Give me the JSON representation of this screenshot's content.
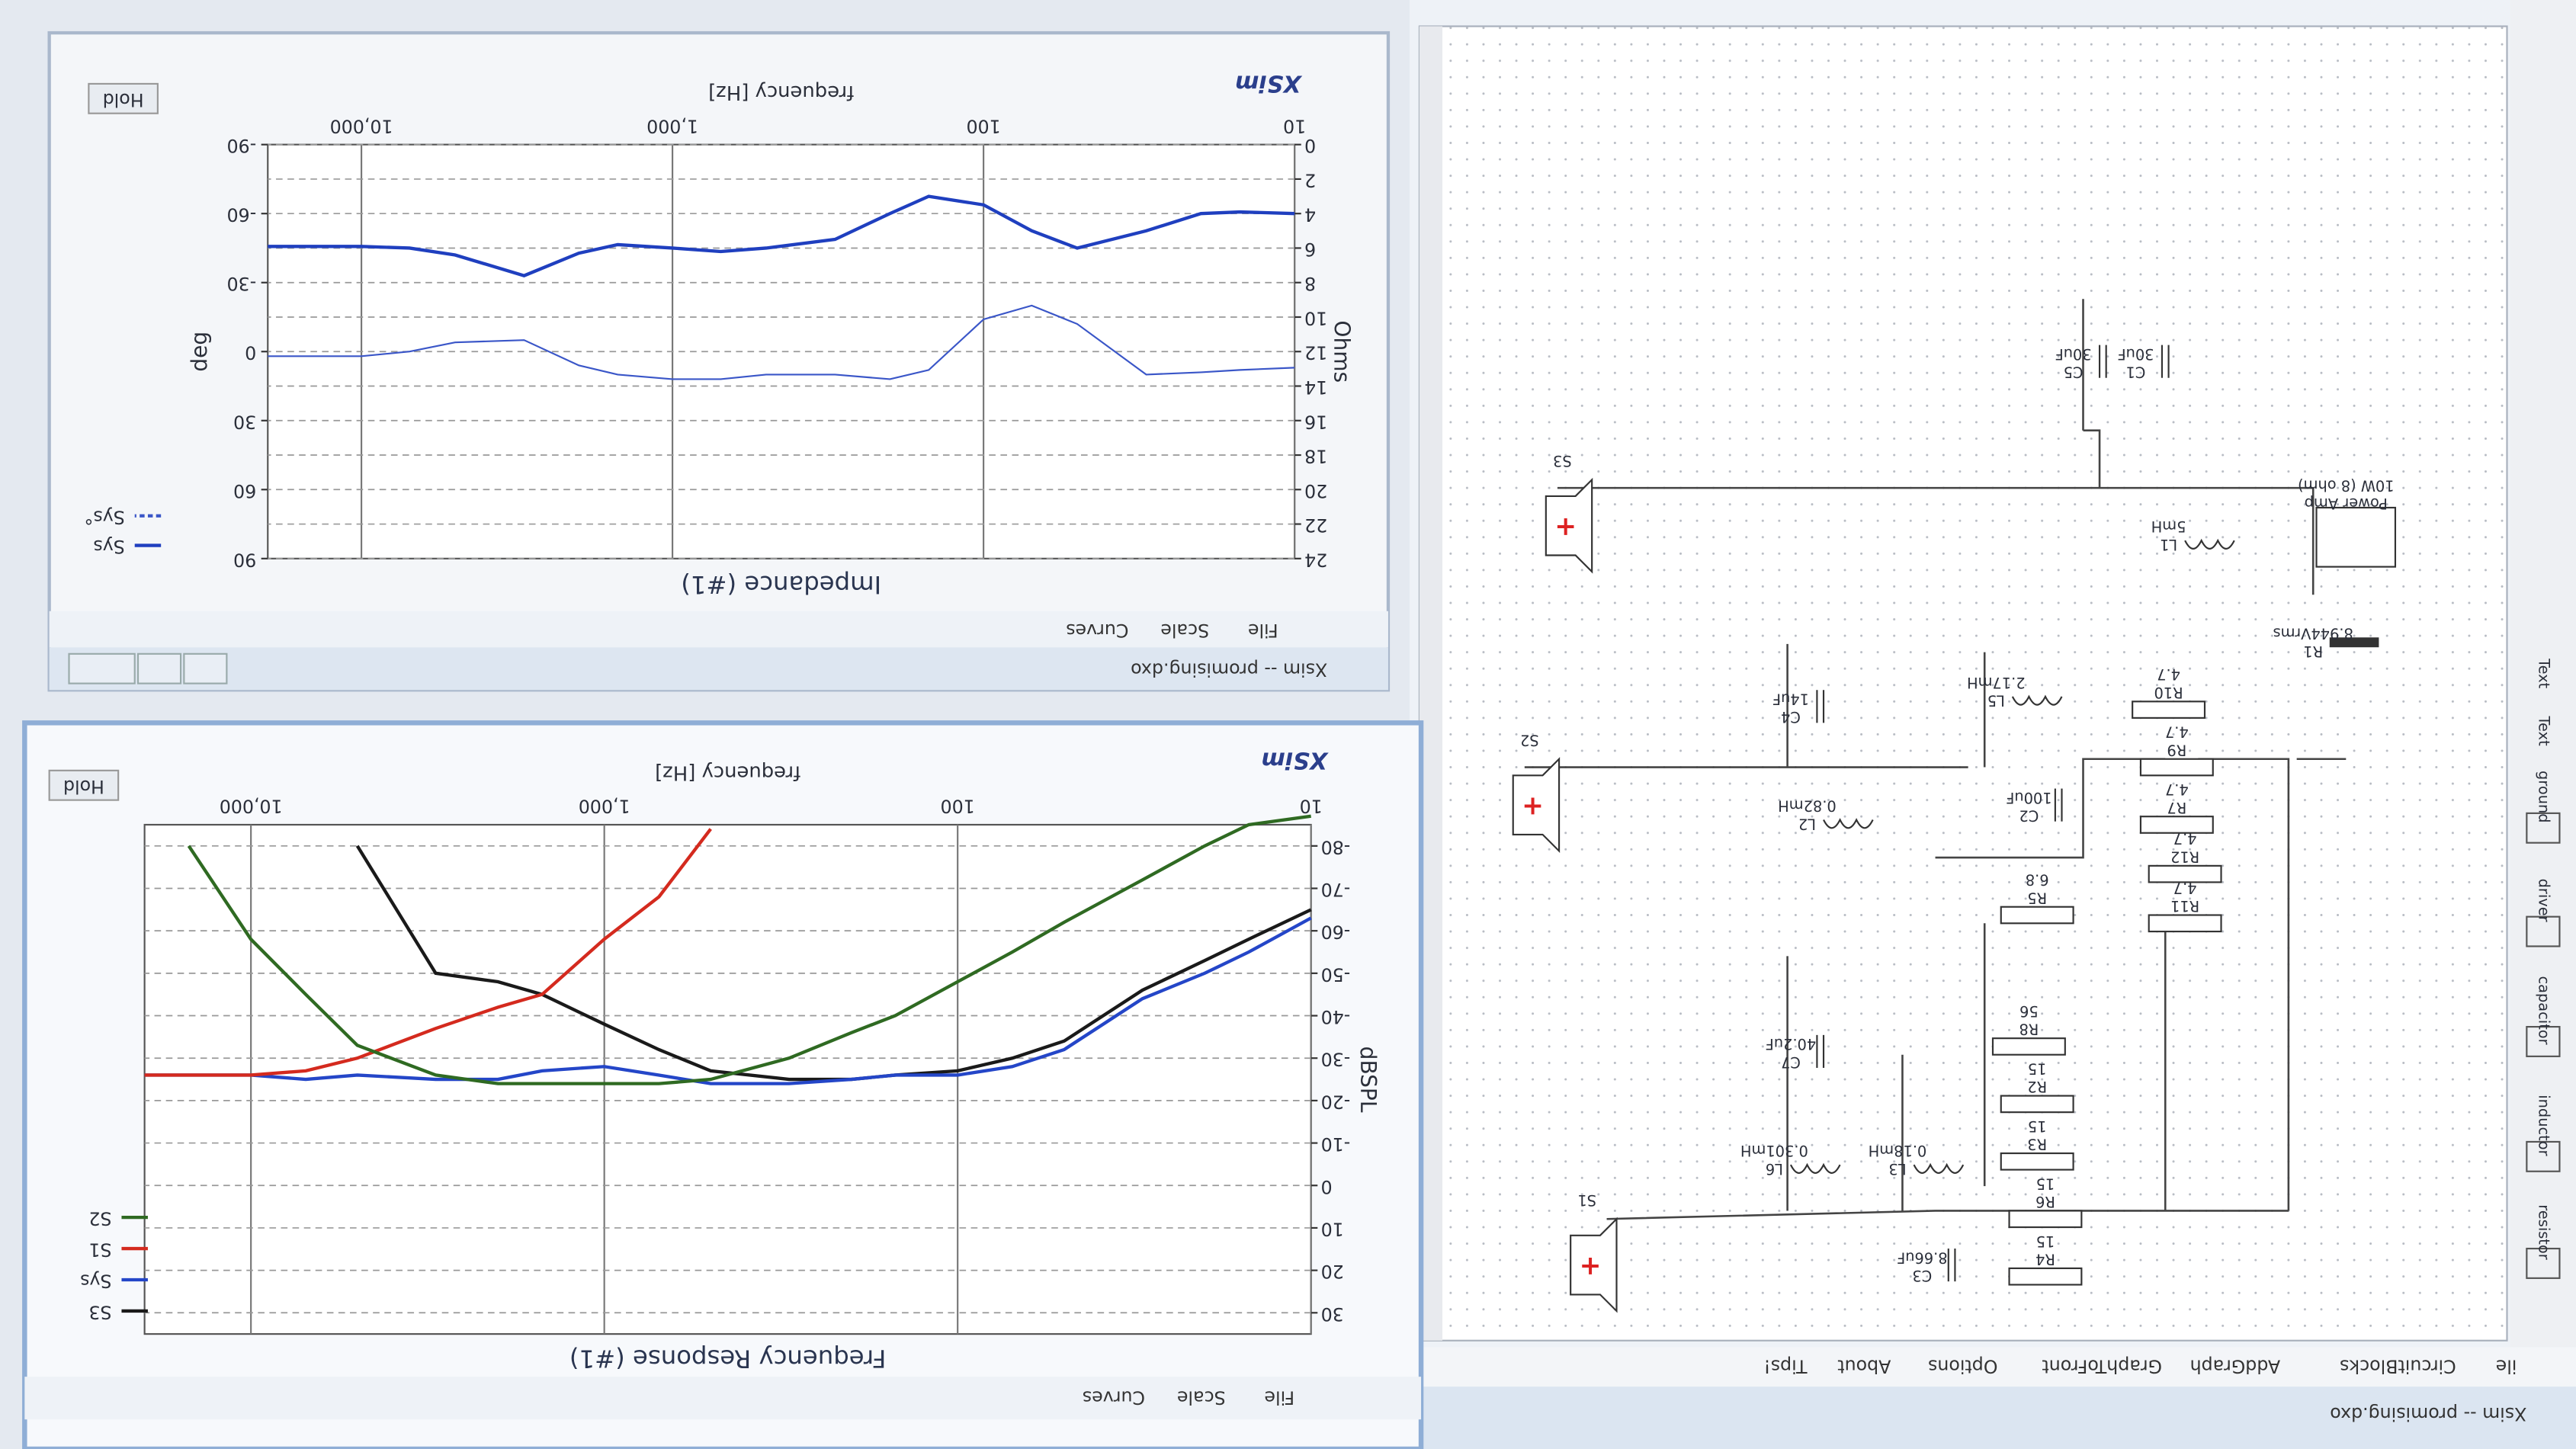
{
  "window": {
    "title": "Xsim -- promising.dxo",
    "menu": [
      "ile",
      "CircuitBlocks",
      "AddGraph",
      "GraphToFront",
      "Options",
      "About",
      "Tips!"
    ]
  },
  "toolbar": [
    "resistor",
    "inductor",
    "capacitor",
    "driver",
    "ground",
    "Text",
    "Text"
  ],
  "schematic": {
    "components": [
      {
        "name": "R4",
        "value": "15"
      },
      {
        "name": "R6",
        "value": "15"
      },
      {
        "name": "R3",
        "value": "15"
      },
      {
        "name": "R2",
        "value": "15"
      },
      {
        "name": "R8",
        "value": "56"
      },
      {
        "name": "R5",
        "value": "6.8"
      },
      {
        "name": "R11",
        "value": "4.7"
      },
      {
        "name": "R12",
        "value": "4.7"
      },
      {
        "name": "R7",
        "value": "4.7"
      },
      {
        "name": "R9",
        "value": "4.7"
      },
      {
        "name": "R10",
        "value": "4.7"
      },
      {
        "name": "R1",
        "value": "8.944Vrms"
      },
      {
        "name": "Power Amp",
        "value": "10W (8 ohm)"
      },
      {
        "name": "L1",
        "value": "5mH"
      },
      {
        "name": "C1",
        "value": "30uF"
      },
      {
        "name": "C5",
        "value": "30uF"
      },
      {
        "name": "C4",
        "value": "14uF"
      },
      {
        "name": "L5",
        "value": "2.17mH"
      },
      {
        "name": "C2",
        "value": "100uF"
      },
      {
        "name": "L2",
        "value": "0.82mH"
      },
      {
        "name": "C7",
        "value": "40.2uF"
      },
      {
        "name": "L6",
        "value": "0.301mH"
      },
      {
        "name": "L3",
        "value": "0.18mH"
      },
      {
        "name": "C3",
        "value": "8.66uF"
      }
    ],
    "drivers": [
      "S1",
      "S2",
      "S3"
    ]
  },
  "chart_data": [
    {
      "type": "line",
      "window_menu": [
        "File",
        "Scale",
        "Curves"
      ],
      "title": "Frequency Response (#1)",
      "brand": "XSim",
      "button": "Hold",
      "x_label": "frequency [Hz]",
      "y_label": "dBSPL",
      "xscale": "log",
      "grid": true,
      "x": [
        10,
        15,
        20,
        30,
        50,
        70,
        100,
        150,
        200,
        300,
        500,
        700,
        1000,
        1500,
        2000,
        3000,
        5000,
        7000,
        10000,
        15000,
        20000
      ],
      "xlim": [
        10,
        20000
      ],
      "xticks": [
        10,
        100,
        {
          "value": 1000,
          "label": "1,000"
        },
        {
          "value": 10000,
          "label": "10,000"
        }
      ],
      "ylim": [
        -85,
        35
      ],
      "yticks": [
        30,
        20,
        10,
        0,
        -10,
        -20,
        -30,
        -40,
        -50,
        -60,
        -70,
        -80
      ],
      "series": [
        {
          "name": "S3",
          "color": "#1a1a1a",
          "values": [
            -65,
            -58,
            -53,
            -46,
            -34,
            -30,
            -27,
            -26,
            -25,
            -25,
            -27,
            -32,
            -38,
            -45,
            -48,
            -50,
            -80,
            null,
            null,
            null,
            null
          ]
        },
        {
          "name": "Sys",
          "color": "#2446c8",
          "values": [
            -63,
            -55,
            -50,
            -44,
            -32,
            -28,
            -26,
            -26,
            -25,
            -24,
            -24,
            -26,
            -28,
            -27,
            -25,
            -25,
            -26,
            -25,
            -26,
            -26,
            -26
          ]
        },
        {
          "name": "S1",
          "color": "#d42a1e",
          "values": [
            null,
            null,
            null,
            null,
            null,
            null,
            null,
            null,
            null,
            null,
            -84,
            -68,
            -58,
            -45,
            -42,
            -37,
            -30,
            -27,
            -26,
            -26,
            -26
          ]
        },
        {
          "name": "S2",
          "color": "#2f6a22",
          "values": [
            -87,
            -85,
            -80,
            -72,
            -62,
            -55,
            -48,
            -40,
            -36,
            -30,
            -25,
            -24,
            -24,
            -24,
            -24,
            -26,
            -33,
            -45,
            -58,
            -80,
            null
          ]
        }
      ]
    },
    {
      "type": "line",
      "window_title": "Xsim -- promising.dxo",
      "window_menu": [
        "File",
        "Scale",
        "Curves"
      ],
      "title": "Impedance (#1)",
      "brand": "XSim",
      "button": "Hold",
      "x_label": "frequency [Hz]",
      "y_label": "Ohms",
      "y2_label": "deg",
      "xscale": "log",
      "grid": true,
      "x": [
        10,
        15,
        20,
        30,
        50,
        70,
        100,
        150,
        200,
        300,
        500,
        700,
        1000,
        1500,
        2000,
        3000,
        5000,
        7000,
        10000,
        15000,
        20000
      ],
      "xlim": [
        10,
        20000
      ],
      "xticks": [
        10,
        100,
        {
          "value": 1000,
          "label": "1,000"
        },
        {
          "value": 10000,
          "label": "10,000"
        }
      ],
      "ylim": [
        0,
        24
      ],
      "yticks": [
        0,
        2,
        4,
        6,
        8,
        10,
        12,
        14,
        16,
        18,
        20,
        22,
        24
      ],
      "y2lim": [
        -90,
        90
      ],
      "y2ticks": [
        -90,
        -60,
        -30,
        0,
        30,
        60,
        90
      ],
      "series": [
        {
          "name": "Sys",
          "color": "#1f3fbf",
          "style": "solid",
          "values": [
            4.0,
            3.9,
            4.0,
            5.0,
            6.0,
            5.0,
            3.5,
            3.0,
            4.0,
            5.5,
            6.0,
            6.2,
            6.0,
            5.8,
            6.3,
            7.6,
            6.4,
            6.0,
            5.9,
            5.9,
            5.9
          ]
        },
        {
          "name": "Sys°",
          "color": "#3a56c8",
          "style": "dashed",
          "axis": "y2",
          "values": [
            7,
            8,
            9,
            10,
            -12,
            -20,
            -14,
            8,
            12,
            10,
            10,
            12,
            12,
            10,
            6,
            -5,
            -4,
            0,
            2,
            2,
            2
          ]
        }
      ]
    }
  ]
}
